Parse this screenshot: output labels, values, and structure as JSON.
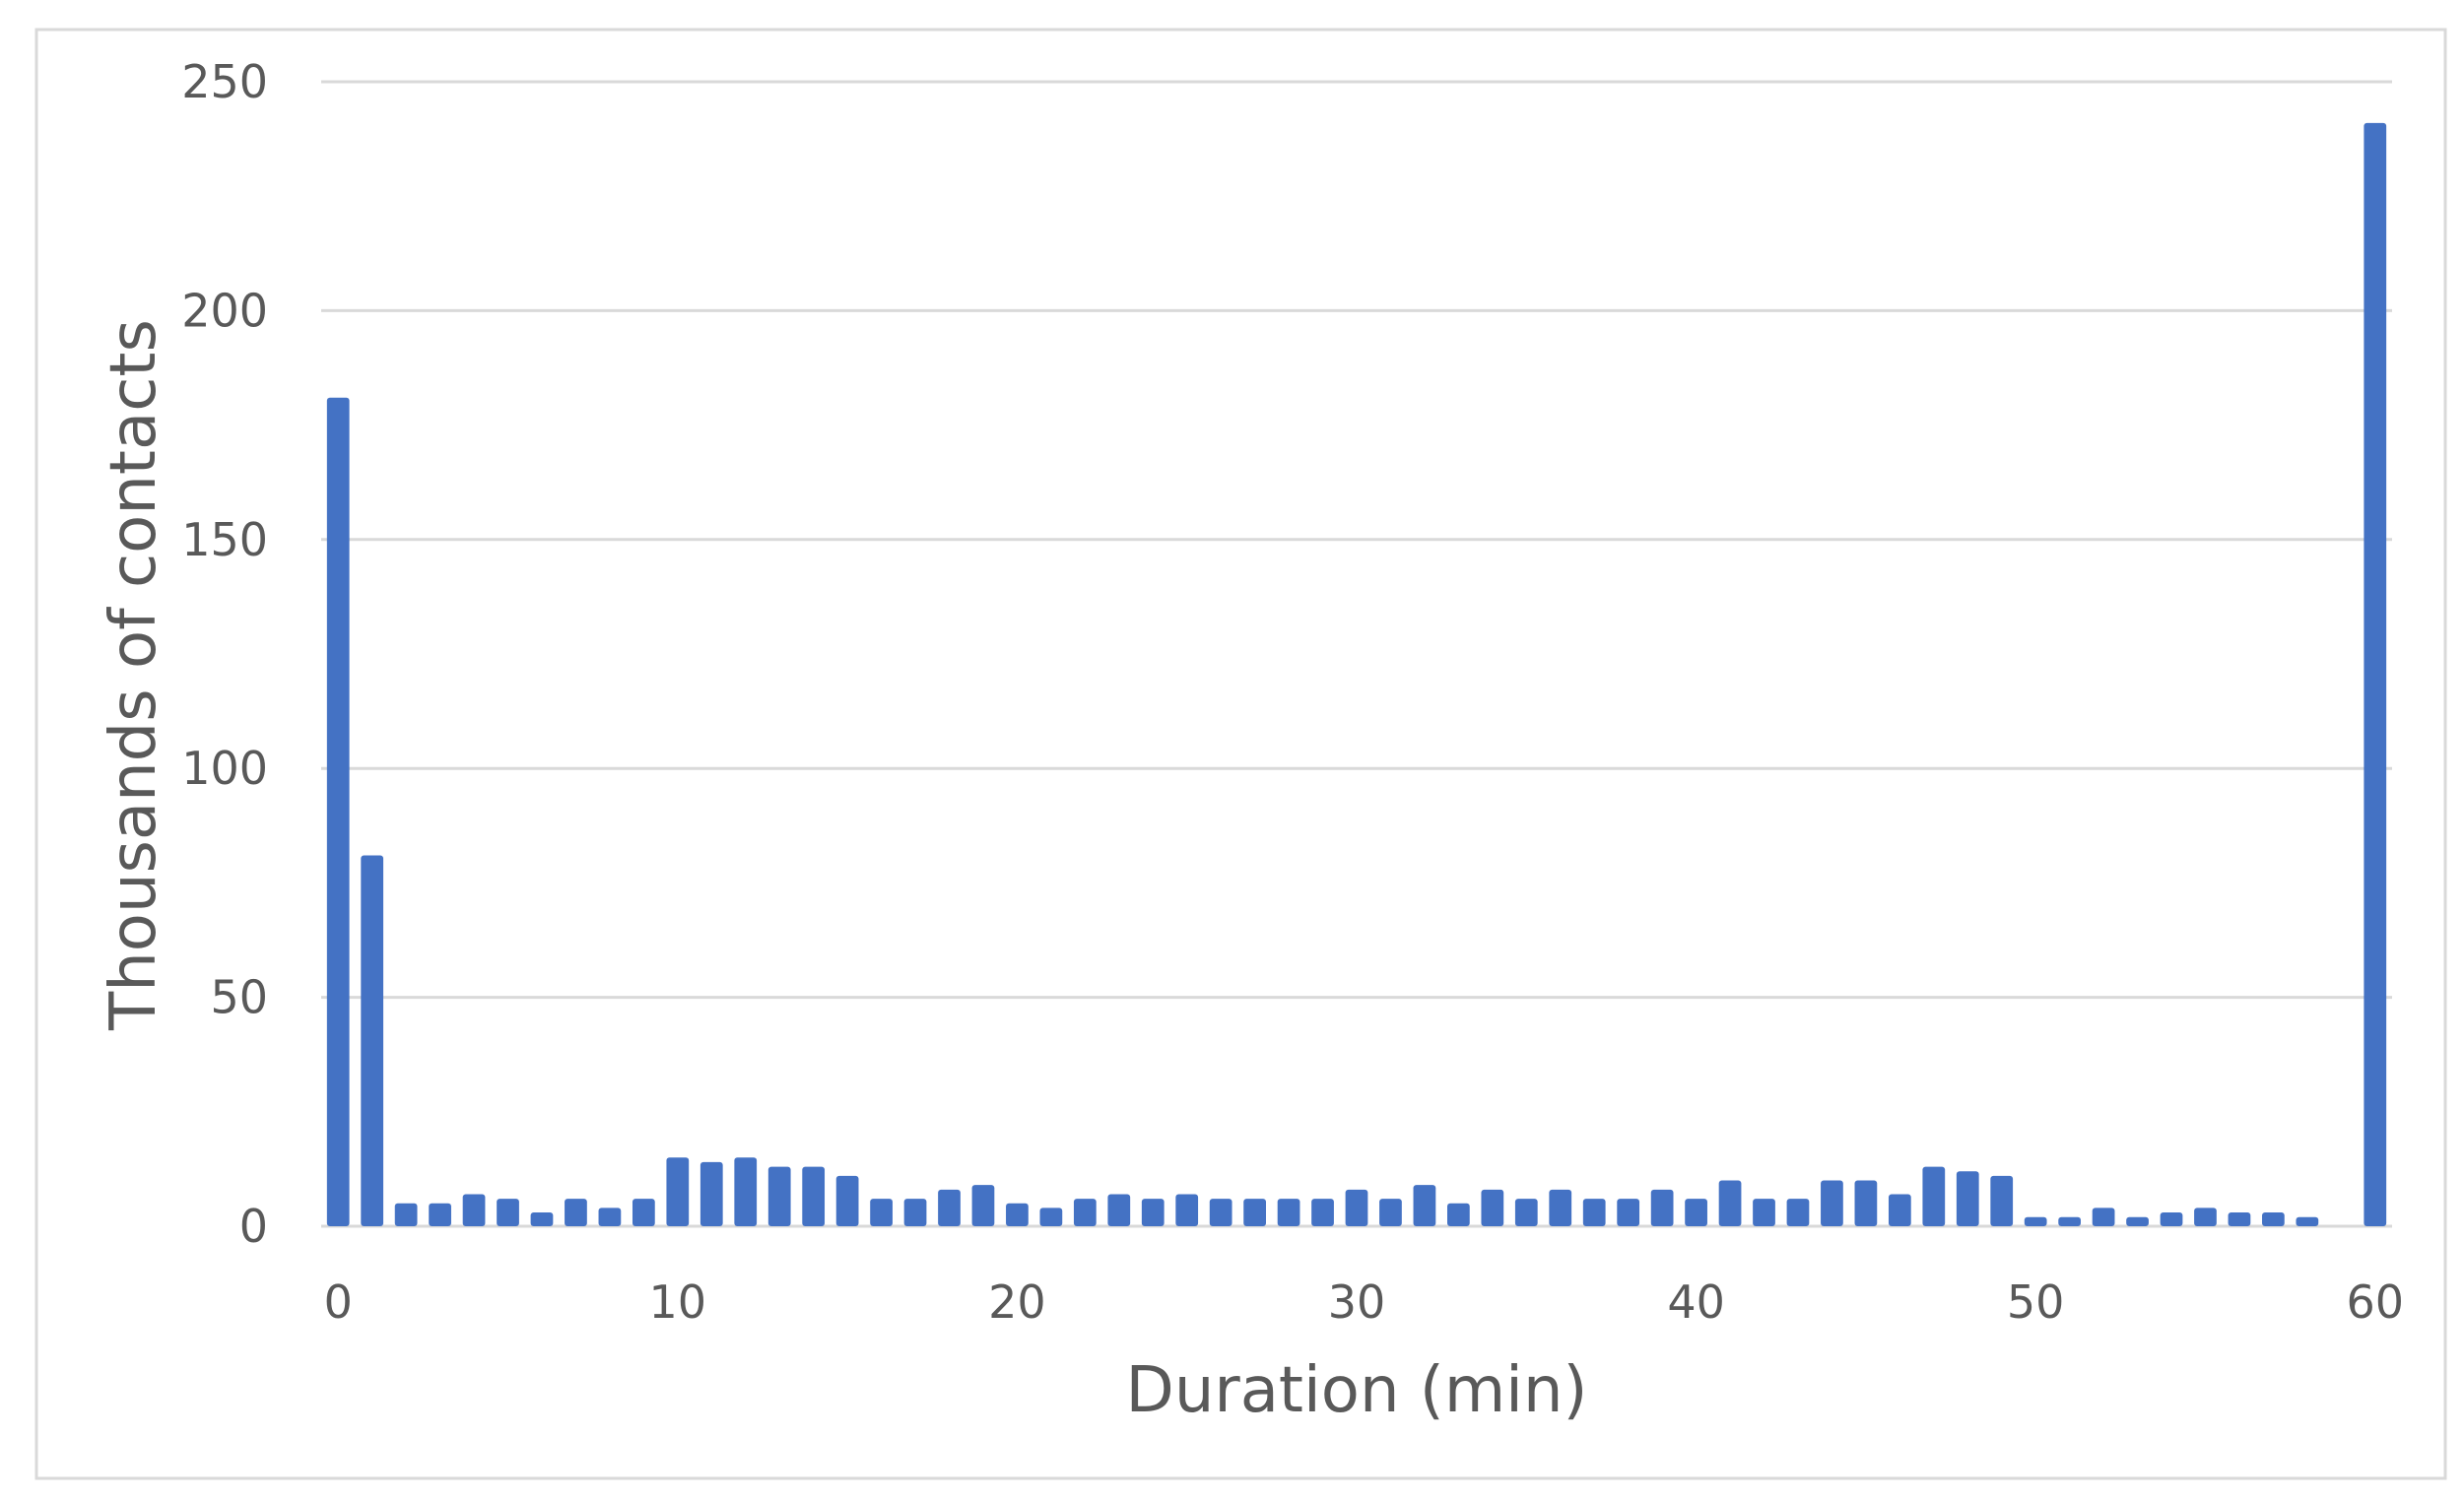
{
  "chart_data": {
    "type": "bar",
    "title": "",
    "xlabel": "Duration (min)",
    "ylabel": "Thousands of contacts",
    "x": [
      0,
      1,
      2,
      3,
      4,
      5,
      6,
      7,
      8,
      9,
      10,
      11,
      12,
      13,
      14,
      15,
      16,
      17,
      18,
      19,
      20,
      21,
      22,
      23,
      24,
      25,
      26,
      27,
      28,
      29,
      30,
      31,
      32,
      33,
      34,
      35,
      36,
      37,
      38,
      39,
      40,
      41,
      42,
      43,
      44,
      45,
      46,
      47,
      48,
      49,
      50,
      51,
      52,
      53,
      54,
      55,
      56,
      57,
      58,
      59,
      60
    ],
    "values": [
      181,
      81,
      5,
      5,
      7,
      6,
      3,
      6,
      4,
      6,
      15,
      14,
      15,
      13,
      13,
      11,
      6,
      6,
      8,
      9,
      5,
      4,
      6,
      7,
      6,
      7,
      6,
      6,
      6,
      6,
      8,
      6,
      9,
      5,
      8,
      6,
      8,
      6,
      6,
      8,
      6,
      10,
      6,
      6,
      10,
      10,
      7,
      13,
      12,
      11,
      2,
      2,
      4,
      2,
      3,
      4,
      3,
      3,
      2,
      0,
      241
    ],
    "xticks": [
      0,
      10,
      20,
      30,
      40,
      50,
      60
    ],
    "xtick_labels": [
      "0",
      "10",
      "20",
      "30",
      "40",
      "50",
      "60"
    ],
    "yticks": [
      0,
      50,
      100,
      150,
      200,
      250
    ],
    "ytick_labels": [
      "0",
      "50",
      "100",
      "150",
      "200",
      "250"
    ],
    "xlim": [
      0,
      60
    ],
    "ylim": [
      0,
      250
    ],
    "grid": true,
    "legend": "none",
    "bar_color": "#4472c4",
    "grid_color": "#d9d9d9",
    "text_color": "#595959",
    "border_color": "#d9d9d9"
  }
}
